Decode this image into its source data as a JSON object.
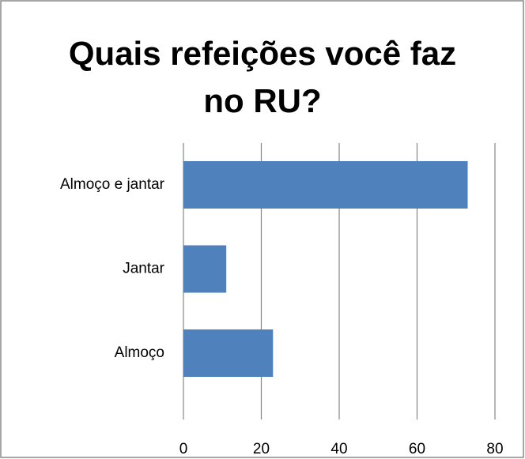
{
  "chart_data": {
    "type": "bar",
    "orientation": "horizontal",
    "title": "Quais refeições você faz no RU?",
    "categories": [
      "Almoço e jantar",
      "Jantar",
      "Almoço"
    ],
    "values": [
      73,
      11,
      23
    ],
    "color": "#4f81bd",
    "xlim": [
      0,
      80
    ],
    "xticks": [
      0,
      20,
      40,
      60,
      80
    ],
    "grid": true
  }
}
